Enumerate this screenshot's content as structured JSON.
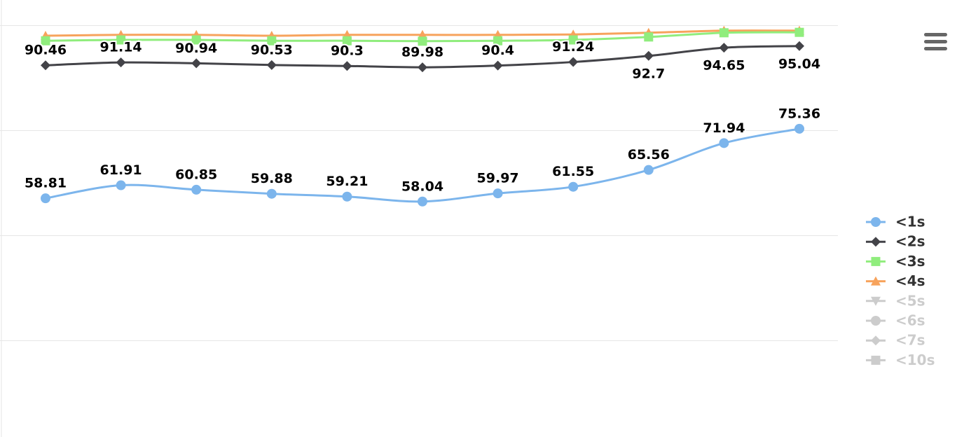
{
  "chart_data": {
    "type": "line",
    "categories": [
      null,
      null,
      null,
      null,
      null,
      null,
      null,
      null,
      null,
      null,
      null
    ],
    "ylim": [
      0,
      100
    ],
    "yticks": [
      25,
      50,
      75,
      100
    ],
    "grid": true,
    "smooth": true,
    "legend": "right",
    "series": [
      {
        "name": "<1s",
        "color": "#7cb5ec",
        "marker": "circle",
        "visible": true,
        "data_labels": true,
        "values": [
          58.81,
          61.91,
          60.85,
          59.88,
          59.21,
          58.04,
          59.97,
          61.55,
          65.56,
          71.94,
          75.36
        ]
      },
      {
        "name": "<2s",
        "color": "#434348",
        "marker": "diamond",
        "visible": true,
        "data_labels": true,
        "values": [
          90.46,
          91.14,
          90.94,
          90.53,
          90.3,
          89.98,
          90.4,
          91.24,
          92.7,
          94.65,
          95.04
        ]
      },
      {
        "name": "<3s",
        "color": "#90ed7d",
        "marker": "square",
        "visible": true,
        "data_labels": false,
        "values": [
          96.3,
          96.5,
          96.5,
          96.3,
          96.3,
          96.2,
          96.3,
          96.5,
          97.2,
          98.2,
          98.3
        ]
      },
      {
        "name": "<4s",
        "color": "#f7a35c",
        "marker": "triangle",
        "visible": true,
        "data_labels": false,
        "values": [
          97.5,
          97.7,
          97.7,
          97.5,
          97.7,
          97.7,
          97.7,
          97.8,
          98.2,
          98.7,
          98.7
        ]
      },
      {
        "name": "<5s",
        "color": "#cccccc",
        "marker": "triangle-down",
        "visible": false,
        "data_labels": false,
        "values": [
          null,
          null,
          null,
          null,
          null,
          null,
          null,
          null,
          null,
          null,
          null
        ]
      },
      {
        "name": "<6s",
        "color": "#cccccc",
        "marker": "circle",
        "visible": false,
        "data_labels": false,
        "values": [
          null,
          null,
          null,
          null,
          null,
          null,
          null,
          null,
          null,
          null,
          null
        ]
      },
      {
        "name": "<7s",
        "color": "#cccccc",
        "marker": "diamond",
        "visible": false,
        "data_labels": false,
        "values": [
          null,
          null,
          null,
          null,
          null,
          null,
          null,
          null,
          null,
          null,
          null
        ]
      },
      {
        "name": "<10s",
        "color": "#cccccc",
        "marker": "square",
        "visible": false,
        "data_labels": false,
        "values": [
          null,
          null,
          null,
          null,
          null,
          null,
          null,
          null,
          null,
          null,
          null
        ]
      }
    ]
  }
}
